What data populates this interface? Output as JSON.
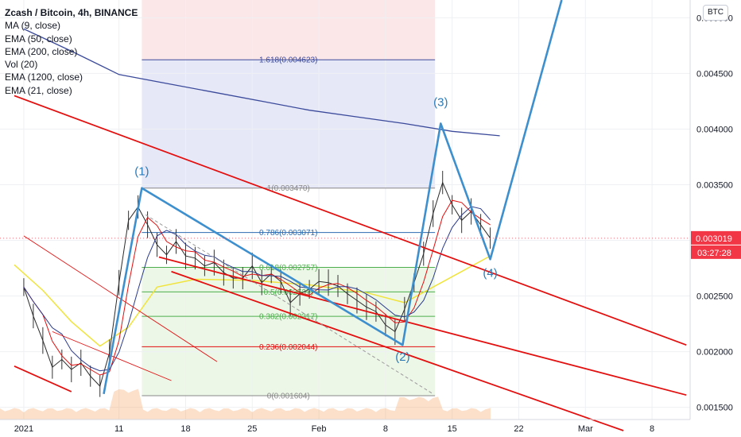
{
  "legend": {
    "title": "Zcash / Bitcoin, 4h, BINANCE",
    "indicators": [
      "MA (9, close)",
      "EMA (50, close)",
      "EMA (200, close)",
      "Vol (20)",
      "EMA (1200, close)",
      "EMA (21, close)"
    ]
  },
  "currency_button": "BTC",
  "colors": {
    "channel": "#e31010",
    "wave": "#3d8fce",
    "ema200": "#3b4a9a",
    "ema_yellow": "#f0e43c",
    "fib_blue_zone": "#e6e8f8",
    "fib_red_zone": "#fbe6e8",
    "fib_green_zone": "#e8f5e2",
    "price_tag": "#f23645",
    "volume_area": "#f7a86a"
  },
  "chart_data": {
    "type": "line",
    "symbol": "Zcash / Bitcoin",
    "interval": "4h",
    "exchange": "BINANCE",
    "y_axis": {
      "ylim": [
        0.00139,
        0.00516
      ],
      "ticks": [
        "0.005000",
        "0.004500",
        "0.004000",
        "0.003500",
        "0.003000",
        "0.002500",
        "0.002000",
        "0.001500"
      ],
      "tick_values": [
        0.005,
        0.0045,
        0.004,
        0.0035,
        0.003,
        0.0025,
        0.002,
        0.0015
      ]
    },
    "x_axis": {
      "ticks": [
        "2021",
        "11",
        "18",
        "25",
        "Feb",
        "8",
        "15",
        "22",
        "Mar",
        "8"
      ],
      "tick_days": [
        0,
        10,
        17,
        24,
        31,
        38,
        45,
        52,
        59,
        66
      ]
    },
    "last_price": "0.003019",
    "countdown": "03:27:28",
    "wave_labels": [
      "(1)",
      "(2)",
      "(3)",
      "(4)"
    ],
    "elliott_wave_path": [
      {
        "day": 8.4,
        "price": 0.00162
      },
      {
        "day": 12.4,
        "price": 0.00347
      },
      {
        "day": 39.8,
        "price": 0.00206
      },
      {
        "day": 43.8,
        "price": 0.00405
      },
      {
        "day": 49.0,
        "price": 0.00283
      },
      {
        "day": 56.5,
        "price": 0.00516
      }
    ],
    "fibonacci": [
      {
        "label": "1.618(0.004623)",
        "value": 0.004623,
        "color": "#3b4a9a"
      },
      {
        "label": "1(0.003470)",
        "value": 0.00347,
        "color": "#888888"
      },
      {
        "label": "0.786(0.003071)",
        "value": 0.003071,
        "color": "#2d6ab0"
      },
      {
        "label": "0.618(0.002757)",
        "value": 0.002757,
        "color": "#4cae4c"
      },
      {
        "label": "0.5(0.002537)",
        "value": 0.002537,
        "color": "#4cae4c"
      },
      {
        "label": "0.382(0.002317)",
        "value": 0.002317,
        "color": "#4cae4c"
      },
      {
        "label": "0.236(0.002044)",
        "value": 0.002044,
        "color": "#e31010"
      },
      {
        "label": "0(0.001604)",
        "value": 0.001604,
        "color": "#888888"
      }
    ],
    "fib_range_days": [
      12.4,
      43.2
    ],
    "channels": [
      {
        "points": [
          {
            "day": -1,
            "price": 0.0043
          },
          {
            "day": 69.6,
            "price": 0.00206
          }
        ]
      },
      {
        "points": [
          {
            "day": -1,
            "price": 0.00187
          },
          {
            "day": 5.0,
            "price": 0.00164
          }
        ]
      },
      {
        "points": [
          {
            "day": 3.0,
            "price": 0.00218
          },
          {
            "day": 15.5,
            "price": 0.00174
          }
        ]
      },
      {
        "points": [
          {
            "day": 14.2,
            "price": 0.00285
          },
          {
            "day": 69.6,
            "price": 0.00161
          }
        ]
      },
      {
        "points": [
          {
            "day": 15.5,
            "price": 0.00272
          },
          {
            "day": 63.0,
            "price": 0.00129
          }
        ]
      },
      {
        "points": [
          {
            "day": 0,
            "price": 0.00304
          },
          {
            "day": 20.3,
            "price": 0.00191
          }
        ]
      }
    ],
    "dashed_diagonal": [
      {
        "day": 12.8,
        "price": 0.00323
      },
      {
        "day": 43.0,
        "price": 0.00162
      }
    ],
    "ema200": [
      {
        "day": 0,
        "price": 0.0049
      },
      {
        "day": 5,
        "price": 0.0047
      },
      {
        "day": 10,
        "price": 0.00449
      },
      {
        "day": 15,
        "price": 0.00441
      },
      {
        "day": 20,
        "price": 0.00433
      },
      {
        "day": 25,
        "price": 0.00425
      },
      {
        "day": 30,
        "price": 0.00417
      },
      {
        "day": 35,
        "price": 0.00411
      },
      {
        "day": 40,
        "price": 0.00405
      },
      {
        "day": 45,
        "price": 0.00398
      },
      {
        "day": 50,
        "price": 0.00394
      }
    ],
    "ema_yellow": [
      {
        "day": -1,
        "price": 0.00278
      },
      {
        "day": 2,
        "price": 0.00255
      },
      {
        "day": 5,
        "price": 0.00227
      },
      {
        "day": 8,
        "price": 0.00205
      },
      {
        "day": 11,
        "price": 0.00222
      },
      {
        "day": 14,
        "price": 0.00258
      },
      {
        "day": 18,
        "price": 0.00265
      },
      {
        "day": 24,
        "price": 0.00264
      },
      {
        "day": 30,
        "price": 0.0026
      },
      {
        "day": 36,
        "price": 0.00253
      },
      {
        "day": 40,
        "price": 0.00244
      },
      {
        "day": 43,
        "price": 0.00258
      },
      {
        "day": 46,
        "price": 0.00272
      },
      {
        "day": 49,
        "price": 0.00286
      }
    ],
    "price_series": [
      {
        "day": 0,
        "price": 0.00258
      },
      {
        "day": 1,
        "price": 0.00232
      },
      {
        "day": 2,
        "price": 0.0021
      },
      {
        "day": 3,
        "price": 0.00186
      },
      {
        "day": 4,
        "price": 0.00193
      },
      {
        "day": 5,
        "price": 0.00184
      },
      {
        "day": 6,
        "price": 0.0019
      },
      {
        "day": 7,
        "price": 0.00178
      },
      {
        "day": 8,
        "price": 0.00169
      },
      {
        "day": 9,
        "price": 0.00199
      },
      {
        "day": 10,
        "price": 0.00262
      },
      {
        "day": 11,
        "price": 0.00318
      },
      {
        "day": 12,
        "price": 0.0033
      },
      {
        "day": 13,
        "price": 0.00314
      },
      {
        "day": 14,
        "price": 0.00296
      },
      {
        "day": 15,
        "price": 0.00287
      },
      {
        "day": 16,
        "price": 0.00299
      },
      {
        "day": 17,
        "price": 0.00286
      },
      {
        "day": 18,
        "price": 0.00284
      },
      {
        "day": 19,
        "price": 0.00277
      },
      {
        "day": 20,
        "price": 0.0028
      },
      {
        "day": 21,
        "price": 0.00271
      },
      {
        "day": 22,
        "price": 0.00266
      },
      {
        "day": 23,
        "price": 0.00266
      },
      {
        "day": 24,
        "price": 0.00277
      },
      {
        "day": 25,
        "price": 0.00262
      },
      {
        "day": 26,
        "price": 0.0027
      },
      {
        "day": 27,
        "price": 0.00263
      },
      {
        "day": 28,
        "price": 0.00244
      },
      {
        "day": 29,
        "price": 0.00252
      },
      {
        "day": 30,
        "price": 0.00256
      },
      {
        "day": 31,
        "price": 0.00263
      },
      {
        "day": 32,
        "price": 0.00262
      },
      {
        "day": 33,
        "price": 0.00259
      },
      {
        "day": 34,
        "price": 0.00252
      },
      {
        "day": 35,
        "price": 0.00246
      },
      {
        "day": 36,
        "price": 0.0024
      },
      {
        "day": 37,
        "price": 0.00236
      },
      {
        "day": 38,
        "price": 0.00224
      },
      {
        "day": 39,
        "price": 0.00218
      },
      {
        "day": 40,
        "price": 0.00238
      },
      {
        "day": 41,
        "price": 0.00262
      },
      {
        "day": 42,
        "price": 0.00288
      },
      {
        "day": 43,
        "price": 0.00324
      },
      {
        "day": 44,
        "price": 0.00352
      },
      {
        "day": 45,
        "price": 0.00332
      },
      {
        "day": 46,
        "price": 0.00318
      },
      {
        "day": 47,
        "price": 0.00326
      },
      {
        "day": 48,
        "price": 0.00314
      },
      {
        "day": 49,
        "price": 0.00302
      }
    ]
  }
}
